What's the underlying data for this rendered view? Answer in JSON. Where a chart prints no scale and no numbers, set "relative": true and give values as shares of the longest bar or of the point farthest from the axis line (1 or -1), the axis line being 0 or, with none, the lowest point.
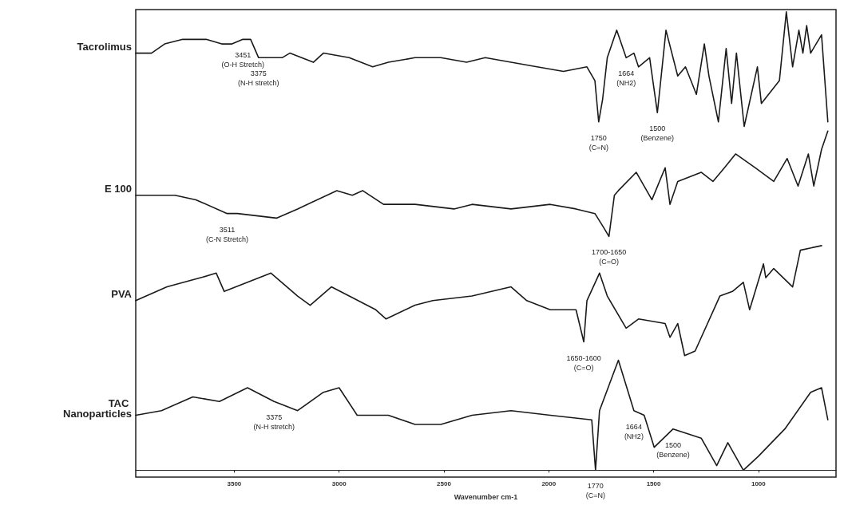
{
  "chart_data": {
    "type": "line",
    "relative": true,
    "xlabel": "Wavenumber cm-1",
    "xlim": [
      3970,
      630
    ],
    "xticks": [
      3500,
      3000,
      2500,
      2000,
      1500,
      1000
    ],
    "grid": false,
    "legend": false,
    "marker": "none",
    "line_style": "solid",
    "series": [
      {
        "name": "Tacrolimus",
        "color": "#1a1a1a",
        "x": [
          3970,
          3895,
          3832,
          3746,
          3634,
          3560,
          3511,
          3459,
          3422,
          3384,
          3336,
          3272,
          3235,
          3123,
          3075,
          2952,
          2840,
          2765,
          2638,
          2515,
          2392,
          2303,
          2180,
          2056,
          1930,
          1818,
          1780,
          1762,
          1743,
          1721,
          1676,
          1631,
          1594,
          1572,
          1519,
          1482,
          1441,
          1385,
          1348,
          1296,
          1258,
          1236,
          1191,
          1154,
          1128,
          1105,
          1068,
          1005,
          986,
          900,
          867,
          837,
          807,
          788,
          770,
          751,
          699,
          669
        ],
        "values": [
          0.91,
          0.91,
          0.93,
          0.94,
          0.94,
          0.93,
          0.93,
          0.94,
          0.94,
          0.9,
          0.9,
          0.9,
          0.91,
          0.89,
          0.91,
          0.9,
          0.88,
          0.89,
          0.9,
          0.9,
          0.89,
          0.9,
          0.89,
          0.88,
          0.87,
          0.88,
          0.85,
          0.76,
          0.81,
          0.9,
          0.96,
          0.9,
          0.91,
          0.88,
          0.9,
          0.78,
          0.96,
          0.86,
          0.88,
          0.82,
          0.93,
          0.86,
          0.76,
          0.92,
          0.8,
          0.91,
          0.75,
          0.88,
          0.8,
          0.85,
          1,
          0.88,
          0.96,
          0.91,
          0.97,
          0.91,
          0.95,
          0.76
        ]
      },
      {
        "name": "E 100",
        "color": "#1a1a1a",
        "x": [
          3970,
          3783,
          3683,
          3534,
          3485,
          3299,
          3198,
          3011,
          2937,
          2888,
          2788,
          2638,
          2452,
          2366,
          2180,
          1993,
          1870,
          1780,
          1739,
          1713,
          1687,
          1668,
          1583,
          1508,
          1445,
          1422,
          1385,
          1273,
          1217,
          1162,
          1109,
          1016,
          927,
          863,
          811,
          762,
          736,
          699,
          669
        ],
        "values": [
          0.6,
          0.6,
          0.59,
          0.56,
          0.56,
          0.55,
          0.57,
          0.61,
          0.6,
          0.61,
          0.58,
          0.58,
          0.57,
          0.58,
          0.57,
          0.58,
          0.57,
          0.56,
          0.53,
          0.51,
          0.6,
          0.61,
          0.65,
          0.59,
          0.66,
          0.58,
          0.63,
          0.65,
          0.63,
          0.66,
          0.69,
          0.66,
          0.63,
          0.68,
          0.62,
          0.69,
          0.62,
          0.7,
          0.74
        ]
      },
      {
        "name": "PVA",
        "color": "#1a1a1a",
        "x": [
          3970,
          3821,
          3660,
          3586,
          3548,
          3325,
          3198,
          3138,
          3037,
          2952,
          2825,
          2776,
          2638,
          2553,
          2366,
          2180,
          2105,
          1993,
          1870,
          1833,
          1818,
          1758,
          1721,
          1631,
          1572,
          1445,
          1422,
          1385,
          1352,
          1302,
          1184,
          1124,
          1072,
          1042,
          976,
          965,
          927,
          837,
          800,
          699
        ],
        "values": [
          0.37,
          0.4,
          0.42,
          0.43,
          0.39,
          0.43,
          0.38,
          0.36,
          0.4,
          0.38,
          0.35,
          0.33,
          0.36,
          0.37,
          0.38,
          0.4,
          0.37,
          0.35,
          0.35,
          0.28,
          0.37,
          0.43,
          0.38,
          0.31,
          0.33,
          0.32,
          0.29,
          0.32,
          0.25,
          0.26,
          0.38,
          0.39,
          0.41,
          0.35,
          0.45,
          0.42,
          0.44,
          0.4,
          0.48,
          0.49
        ]
      },
      {
        "name": "TAC Nanoparticles",
        "color": "#1a1a1a",
        "x": [
          3970,
          3847,
          3698,
          3571,
          3437,
          3310,
          3198,
          3075,
          3000,
          2914,
          2765,
          2638,
          2515,
          2366,
          2180,
          1993,
          1795,
          1777,
          1758,
          1668,
          1594,
          1545,
          1497,
          1407,
          1273,
          1199,
          1146,
          1072,
          1001,
          874,
          751,
          699,
          669
        ],
        "values": [
          0.12,
          0.13,
          0.16,
          0.15,
          0.18,
          0.15,
          0.13,
          0.17,
          0.18,
          0.12,
          0.12,
          0.1,
          0.1,
          0.12,
          0.13,
          0.12,
          0.11,
          0,
          0.13,
          0.24,
          0.13,
          0.12,
          0.05,
          0.09,
          0.07,
          0.01,
          0.06,
          0,
          0.03,
          0.09,
          0.17,
          0.18,
          0.11
        ]
      }
    ],
    "annotations": [
      {
        "text": "3451\n(O-H Stretch)",
        "x": 3459,
        "y": 0.94
      },
      {
        "text": "3375\n(N-H stretch)",
        "x": 3384,
        "y": 0.9
      },
      {
        "text": "1750\n(C=N)",
        "x": 1762,
        "y": 0.76
      },
      {
        "text": "1664\n(NH2)",
        "x": 1631,
        "y": 0.9
      },
      {
        "text": "1500\n(Benzene)",
        "x": 1482,
        "y": 0.78
      },
      {
        "text": "3511\n(C-N Stretch)",
        "x": 3534,
        "y": 0.56
      },
      {
        "text": "1700-1650\n(C=O)",
        "x": 1713,
        "y": 0.51
      },
      {
        "text": "1650-1600\n(C=O)",
        "x": 1833,
        "y": 0.28
      },
      {
        "text": "3375\n(N-H stretch)",
        "x": 3310,
        "y": 0.15
      },
      {
        "text": "1664\n(NH2)",
        "x": 1594,
        "y": 0.13
      },
      {
        "text": "1500\n(Benzene)",
        "x": 1407,
        "y": 0.09
      },
      {
        "text": "1770\n(C=N)",
        "x": 1777,
        "y": 0
      }
    ]
  }
}
